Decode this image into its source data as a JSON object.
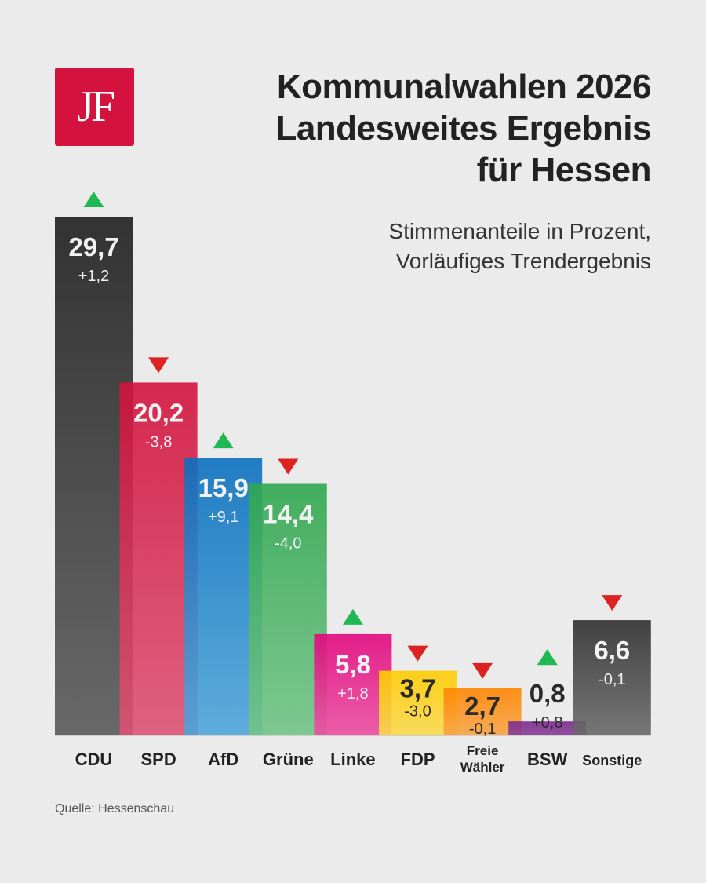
{
  "logo": {
    "text": "JF",
    "color": "#d3123d"
  },
  "title_lines": [
    "Kommunalwahlen 2026",
    "Landesweites Ergebnis",
    "für Hessen"
  ],
  "subtitle_lines": [
    "Stimmenanteile in Prozent,",
    "Vorläufiges Trendergebnis"
  ],
  "source": "Quelle: Hessenschau",
  "chart_data": {
    "type": "bar",
    "title": "Kommunalwahlen 2026 Landesweites Ergebnis für Hessen",
    "subtitle": "Stimmenanteile in Prozent, Vorläufiges Trendergebnis",
    "categories": [
      "CDU",
      "SPD",
      "AfD",
      "Grüne",
      "Linke",
      "FDP",
      "Freie Wähler",
      "BSW",
      "Sonstige"
    ],
    "category_lines": [
      [
        "CDU"
      ],
      [
        "SPD"
      ],
      [
        "AfD"
      ],
      [
        "Grüne"
      ],
      [
        "Linke"
      ],
      [
        "FDP"
      ],
      [
        "Freie",
        "Wähler"
      ],
      [
        "BSW"
      ],
      [
        "Sonstige"
      ]
    ],
    "values": [
      29.7,
      20.2,
      15.9,
      14.4,
      5.8,
      3.7,
      2.7,
      0.8,
      6.6
    ],
    "value_labels": [
      "29,7",
      "20,2",
      "15,9",
      "14,4",
      "5,8",
      "3,7",
      "2,7",
      "0,8",
      "6,6"
    ],
    "changes": [
      1.2,
      -3.8,
      9.1,
      -4.0,
      1.8,
      -3.0,
      -0.1,
      0.8,
      -0.1
    ],
    "change_labels": [
      "+1,2",
      "-3,8",
      "+9,1",
      "-4,0",
      "+1,8",
      "-3,0",
      "-0,1",
      "+0,8",
      "-0,1"
    ],
    "colors": [
      [
        "#1e1e1e",
        "#5a5a5a"
      ],
      [
        "#d3123d",
        "#dc5274"
      ],
      [
        "#0a70bf",
        "#4ea5da"
      ],
      [
        "#2fa74f",
        "#72c487"
      ],
      [
        "#e2077e",
        "#ec4fa2"
      ],
      [
        "#ffcc00",
        "#f9d94c"
      ],
      [
        "#ff8500",
        "#f8a345"
      ],
      [
        "#7a2b8b",
        "#8a3d98"
      ],
      [
        "#2f2f2f",
        "#6a6a6a"
      ]
    ],
    "label_dark": [
      false,
      false,
      false,
      false,
      false,
      true,
      true,
      true,
      false
    ],
    "up_color": "#1fb854",
    "down_color": "#dd2222",
    "ylim": [
      0,
      30
    ],
    "grid": false
  }
}
